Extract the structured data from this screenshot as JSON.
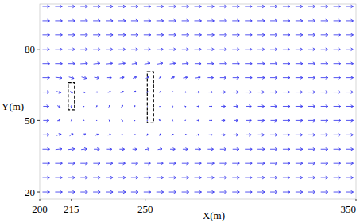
{
  "chart_data": {
    "type": "quiver",
    "xlabel": "X(m)",
    "ylabel": "Y(m)",
    "color": "#2a2aee",
    "xlim": [
      200,
      350
    ],
    "ylim": [
      17,
      99
    ],
    "xticks": [
      200,
      215,
      250,
      350
    ],
    "yticks": [
      20,
      50,
      80
    ],
    "x": [
      203,
      209,
      215,
      221,
      227,
      233,
      239,
      245,
      251,
      257,
      263,
      269,
      275,
      281,
      287,
      293,
      299,
      305,
      311,
      317,
      323,
      329,
      335,
      341,
      347
    ],
    "y": [
      98,
      92,
      86,
      80,
      74,
      68,
      62,
      56,
      50,
      44,
      38,
      32,
      26,
      20
    ],
    "u": [
      [
        1,
        1,
        1,
        1,
        1,
        1,
        1,
        1,
        1,
        1,
        1,
        1,
        1,
        1,
        1,
        1,
        1,
        1,
        1,
        1,
        1,
        1,
        1,
        1,
        1
      ],
      [
        1,
        1,
        1,
        1,
        1,
        1,
        1,
        1,
        1,
        1,
        1,
        1,
        1,
        1,
        1,
        1,
        1,
        1,
        1,
        1,
        1,
        1,
        1,
        1,
        1
      ],
      [
        1,
        1,
        1,
        1,
        1,
        1,
        1,
        1,
        1,
        1,
        1,
        1,
        1,
        1,
        1,
        1,
        1,
        1,
        1,
        1,
        1,
        1,
        1,
        1,
        1
      ],
      [
        1,
        1,
        1,
        1,
        1,
        1,
        1,
        0.95,
        0.95,
        0.95,
        0.95,
        0.95,
        1,
        1,
        1,
        1,
        1,
        1,
        1,
        1,
        1,
        1,
        1,
        1,
        1
      ],
      [
        1,
        1,
        1,
        1,
        0.9,
        0.9,
        0.9,
        0.8,
        0.8,
        0.8,
        0.8,
        0.9,
        0.9,
        0.9,
        1,
        1,
        1,
        1,
        1,
        1,
        1,
        1,
        1,
        1,
        1
      ],
      [
        1,
        0.9,
        0.7,
        0.7,
        0.7,
        0.6,
        0.6,
        0.5,
        0.4,
        0.3,
        0.5,
        0.6,
        0.7,
        0.8,
        0.9,
        0.9,
        1,
        1,
        1,
        1,
        1,
        1,
        1,
        1,
        1
      ],
      [
        0.9,
        0.6,
        0.3,
        0.2,
        0.3,
        0.4,
        0.4,
        0.3,
        0.1,
        0.1,
        0.2,
        0.3,
        0.5,
        0.6,
        0.7,
        0.8,
        0.9,
        0.9,
        1,
        1,
        1,
        1,
        1,
        1,
        1
      ],
      [
        0.8,
        0.4,
        0,
        -0.1,
        0.1,
        0.2,
        0.2,
        0.1,
        0,
        -0.1,
        0,
        0.2,
        0.3,
        0.4,
        0.6,
        0.7,
        0.8,
        0.9,
        0.9,
        1,
        1,
        1,
        1,
        1,
        1
      ],
      [
        0.8,
        0.4,
        0.1,
        -0.1,
        0,
        0.1,
        0.2,
        0.1,
        0,
        -0.2,
        -0.1,
        0.1,
        0.3,
        0.4,
        0.5,
        0.6,
        0.8,
        0.9,
        0.9,
        1,
        1,
        1,
        1,
        1,
        1
      ],
      [
        0.9,
        0.7,
        0.5,
        0.4,
        0.4,
        0.4,
        0.3,
        0.2,
        0.1,
        0.1,
        0.2,
        0.3,
        0.4,
        0.5,
        0.6,
        0.7,
        0.8,
        0.9,
        1,
        1,
        1,
        1,
        1,
        1,
        1
      ],
      [
        1,
        0.9,
        0.9,
        0.8,
        0.8,
        0.7,
        0.7,
        0.6,
        0.6,
        0.6,
        0.7,
        0.7,
        0.8,
        0.8,
        0.9,
        0.9,
        1,
        1,
        1,
        1,
        1,
        1,
        1,
        1,
        1
      ],
      [
        1,
        1,
        1,
        1,
        0.95,
        0.95,
        0.9,
        0.9,
        0.9,
        0.9,
        0.9,
        0.95,
        0.95,
        1,
        1,
        1,
        1,
        1,
        1,
        1,
        1,
        1,
        1,
        1,
        1
      ],
      [
        1,
        1,
        1,
        1,
        1,
        1,
        1,
        1,
        1,
        1,
        1,
        1,
        1,
        1,
        1,
        1,
        1,
        1,
        1,
        1,
        1,
        1,
        1,
        1,
        1
      ],
      [
        1,
        1,
        1,
        1,
        1,
        1,
        1,
        1,
        1,
        1,
        1,
        1,
        1,
        1,
        1,
        1,
        1,
        1,
        1,
        1,
        1,
        1,
        1,
        1,
        1
      ]
    ],
    "v": [
      [
        0,
        0,
        0,
        0,
        0,
        0,
        0,
        0,
        0,
        0,
        0,
        0,
        0,
        0,
        0,
        0,
        0,
        0,
        0,
        0,
        0,
        0,
        0,
        0,
        0
      ],
      [
        0,
        0,
        0,
        0,
        0,
        0,
        0,
        0,
        0,
        0,
        0,
        0,
        0,
        0,
        0,
        0,
        0,
        0,
        0,
        0,
        0,
        0,
        0,
        0,
        0
      ],
      [
        0,
        0,
        0,
        0,
        0,
        0,
        0,
        0,
        0,
        0,
        0,
        0,
        0,
        0,
        0,
        0,
        0,
        0,
        0,
        0,
        0,
        0,
        0,
        0,
        0
      ],
      [
        0,
        0,
        0,
        0,
        0,
        0,
        0,
        0,
        0,
        0,
        0,
        0,
        0,
        0,
        0,
        0,
        0,
        0,
        0,
        0,
        0,
        0,
        0,
        0,
        0
      ],
      [
        0,
        0,
        0,
        0.05,
        0.1,
        0.1,
        0.1,
        0.1,
        0.15,
        0.15,
        0.1,
        0.05,
        0,
        0,
        0,
        0,
        0,
        0,
        0,
        0,
        0,
        0,
        0,
        0,
        0
      ],
      [
        0,
        -0.1,
        -0.2,
        -0.2,
        -0.1,
        0,
        0.1,
        0.2,
        0.2,
        0.2,
        0.2,
        0.1,
        0.1,
        0,
        0,
        0,
        0,
        0,
        0,
        0,
        0,
        0,
        0,
        0,
        0
      ],
      [
        0,
        -0.2,
        -0.3,
        -0.2,
        0,
        0.1,
        0.2,
        0.3,
        0.3,
        0.2,
        0.1,
        0,
        0,
        0,
        0,
        0,
        0,
        0,
        0,
        0,
        0,
        0,
        0,
        0,
        0
      ],
      [
        0,
        -0.2,
        -0.3,
        -0.1,
        0.2,
        0.3,
        0.3,
        0.2,
        0,
        -0.1,
        -0.2,
        -0.1,
        0,
        0,
        0,
        0,
        0,
        0,
        0,
        0,
        0,
        0,
        0,
        0,
        0
      ],
      [
        0,
        0.1,
        0.2,
        0.1,
        -0.1,
        -0.2,
        -0.2,
        -0.1,
        0.1,
        0.2,
        0.2,
        0.1,
        0,
        0,
        0,
        0,
        0,
        0,
        0,
        0,
        0,
        0,
        0,
        0,
        0
      ],
      [
        0,
        0.2,
        0.3,
        0.3,
        0.2,
        0.1,
        0,
        0.1,
        0.3,
        0.3,
        0.2,
        0.1,
        0.1,
        0,
        0,
        0,
        0,
        0,
        0,
        0,
        0,
        0,
        0,
        0,
        0
      ],
      [
        0,
        0.1,
        0.1,
        0.1,
        0,
        0,
        0,
        0,
        0.1,
        0.1,
        0,
        0,
        0,
        0,
        0,
        0,
        0,
        0,
        0,
        0,
        0,
        0,
        0,
        0,
        0
      ],
      [
        0,
        0,
        0,
        0,
        0,
        0,
        0,
        0,
        0,
        0,
        0,
        0,
        0,
        0,
        0,
        0,
        0,
        0,
        0,
        0,
        0,
        0,
        0,
        0,
        0
      ],
      [
        0,
        0,
        0,
        0,
        0,
        0,
        0,
        0,
        0,
        0,
        0,
        0,
        0,
        0,
        0,
        0,
        0,
        0,
        0,
        0,
        0,
        0,
        0,
        0,
        0
      ],
      [
        0,
        0,
        0,
        0,
        0,
        0,
        0,
        0,
        0,
        0,
        0,
        0,
        0,
        0,
        0,
        0,
        0,
        0,
        0,
        0,
        0,
        0,
        0,
        0,
        0
      ]
    ],
    "obstacles": [
      {
        "x": [
          213.5,
          216.5
        ],
        "y": [
          54.5,
          66
        ]
      },
      {
        "x": [
          251,
          254
        ],
        "y": [
          49,
          70.5
        ]
      }
    ]
  }
}
